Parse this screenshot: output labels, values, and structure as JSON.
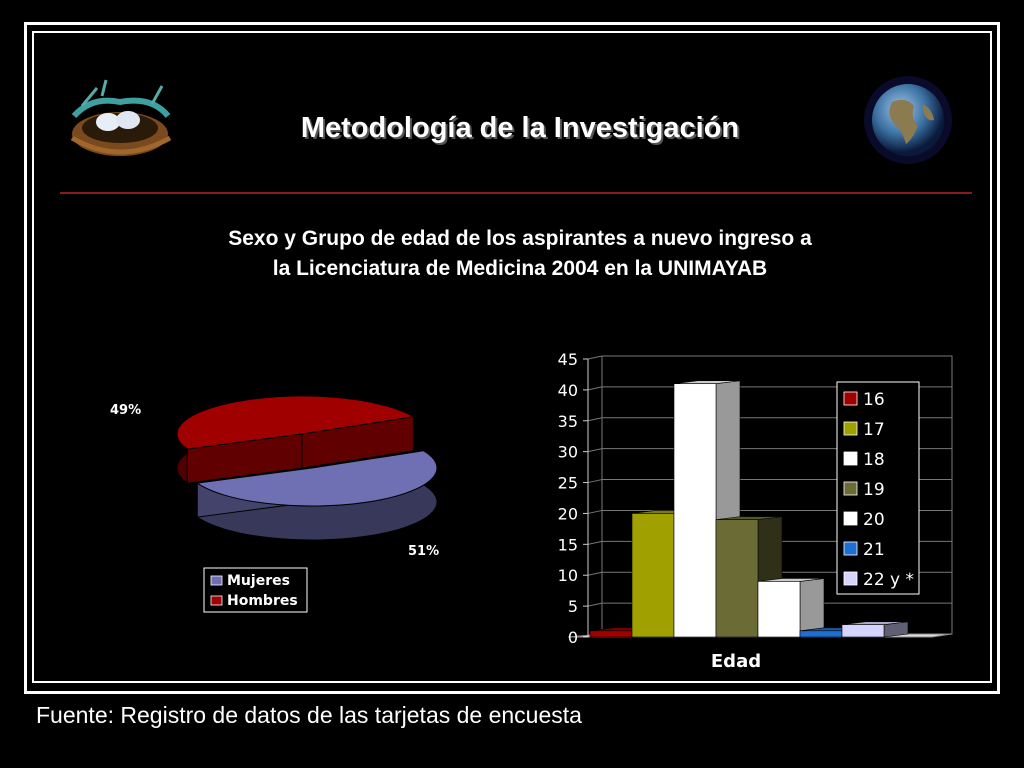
{
  "slide": {
    "title": "Metodología de la Investigación",
    "subtitle_line1": "Sexo y Grupo de edad de los aspirantes a nuevo ingreso a",
    "subtitle_line2": "la Licenciatura de Medicina 2004 en la UNIMAYAB",
    "footer": "Fuente: Registro de datos de las tarjetas de encuesta",
    "icons": [
      "bird-nest-icon",
      "globe-icon"
    ]
  },
  "chart_data": [
    {
      "type": "pie",
      "categories": [
        "Mujeres",
        "Hombres"
      ],
      "values": [
        51,
        49
      ],
      "data_labels": [
        "51%",
        "49%"
      ],
      "legend": [
        "Mujeres",
        "Hombres"
      ],
      "legend_placement": "bottom",
      "colors": [
        "#6f6fb3",
        "#a00000"
      ]
    },
    {
      "type": "bar",
      "categories": [
        "16",
        "17",
        "18",
        "19",
        "20",
        "21",
        "22 y *"
      ],
      "values": [
        1,
        20,
        41,
        19,
        9,
        1,
        2
      ],
      "colors": [
        "#a00000",
        "#a0a000",
        "#ffffff",
        "#6b6b36",
        "#ffffff",
        "#1f6fd1",
        "#d4d4ff"
      ],
      "xlabel": "Edad",
      "ylabel": "",
      "ylim": [
        0,
        45
      ],
      "yticks": [
        0,
        5,
        10,
        15,
        20,
        25,
        30,
        35,
        40,
        45
      ],
      "legend": [
        "16",
        "17",
        "18",
        "19",
        "20",
        "21",
        "22 y *"
      ],
      "legend_placement": "right",
      "grid": true
    }
  ]
}
